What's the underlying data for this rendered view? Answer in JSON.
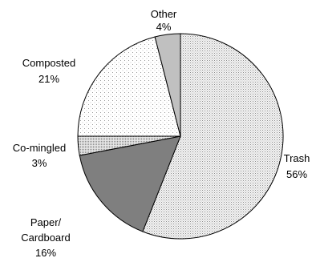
{
  "chart_data": {
    "type": "pie",
    "start_angle_deg": 0,
    "direction": "clockwise",
    "slices": [
      {
        "label": "Trash",
        "value": 56,
        "value_label": "56%",
        "fill": "dots-light",
        "color": "#f2f2f2"
      },
      {
        "label": "Paper/ Cardboard",
        "label_lines": [
          "Paper/",
          "Cardboard"
        ],
        "value": 16,
        "value_label": "16%",
        "fill": "solid",
        "color": "#7f7f7f"
      },
      {
        "label": "Co-mingled",
        "value": 3,
        "value_label": "3%",
        "fill": "dots-dense",
        "color": "#d9d9d9"
      },
      {
        "label": "Composted",
        "value": 21,
        "value_label": "21%",
        "fill": "dots-sparse",
        "color": "#ffffff"
      },
      {
        "label": "Other",
        "value": 4,
        "value_label": "4%",
        "fill": "solid",
        "color": "#c0c0c0"
      }
    ]
  }
}
